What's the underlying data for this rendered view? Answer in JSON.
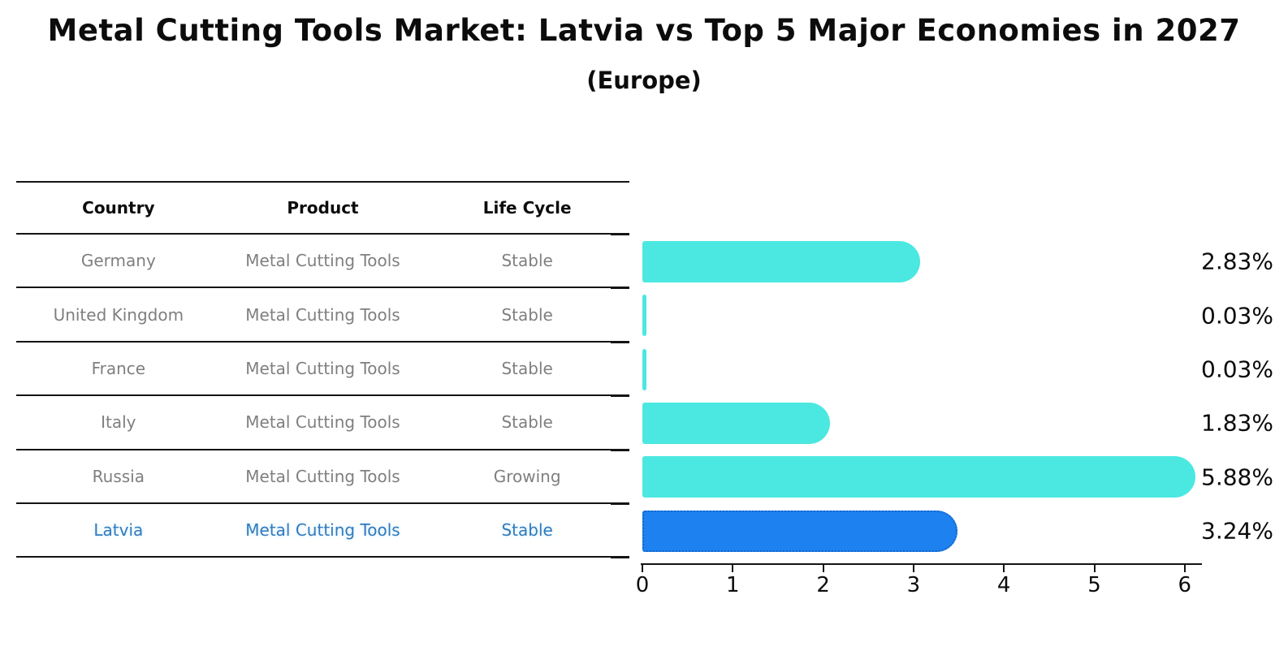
{
  "header": {
    "title": "Metal Cutting Tools Market: Latvia vs Top 5 Major Economies in 2027",
    "subtitle": "(Europe)"
  },
  "table": {
    "columns": [
      "Country",
      "Product",
      "Life Cycle"
    ],
    "rows": [
      {
        "country": "Germany",
        "product": "Metal Cutting Tools",
        "life_cycle": "Stable",
        "highlight": false
      },
      {
        "country": "United Kingdom",
        "product": "Metal Cutting Tools",
        "life_cycle": "Stable",
        "highlight": false
      },
      {
        "country": "France",
        "product": "Metal Cutting Tools",
        "life_cycle": "Stable",
        "highlight": false
      },
      {
        "country": "Italy",
        "product": "Metal Cutting Tools",
        "life_cycle": "Stable",
        "highlight": false
      },
      {
        "country": "Russia",
        "product": "Metal Cutting Tools",
        "life_cycle": "Growing",
        "highlight": false
      },
      {
        "country": "Latvia",
        "product": "Metal Cutting Tools",
        "life_cycle": "Stable",
        "highlight": true
      }
    ]
  },
  "chart_data": {
    "type": "bar",
    "orientation": "horizontal",
    "title": "Metal Cutting Tools Market: Latvia vs Top 5 Major Economies in 2027",
    "subtitle": "(Europe)",
    "categories": [
      "Germany",
      "United Kingdom",
      "France",
      "Italy",
      "Russia",
      "Latvia"
    ],
    "values": [
      2.83,
      0.03,
      0.03,
      1.83,
      5.88,
      3.24
    ],
    "value_labels": [
      "2.83%",
      "0.03%",
      "0.03%",
      "1.83%",
      "5.88%",
      "3.24%"
    ],
    "xlabel": "",
    "ylabel": "",
    "xlim": [
      0,
      6.2
    ],
    "x_ticks": [
      0,
      1,
      2,
      3,
      4,
      5,
      6
    ],
    "grid": false,
    "legend": false,
    "highlight_index": 5,
    "bar_color": "#4be8e1",
    "highlight_bar_color": "#1d82f0",
    "highlight_border_color": "#1565c8",
    "label_color": "#0a0a0a"
  },
  "colors": {
    "background": "#ffffff",
    "table_line": "#141414",
    "table_text": "#7f7f7f",
    "header_text": "#0c0c0c",
    "highlight_text": "#2f7bbd"
  }
}
